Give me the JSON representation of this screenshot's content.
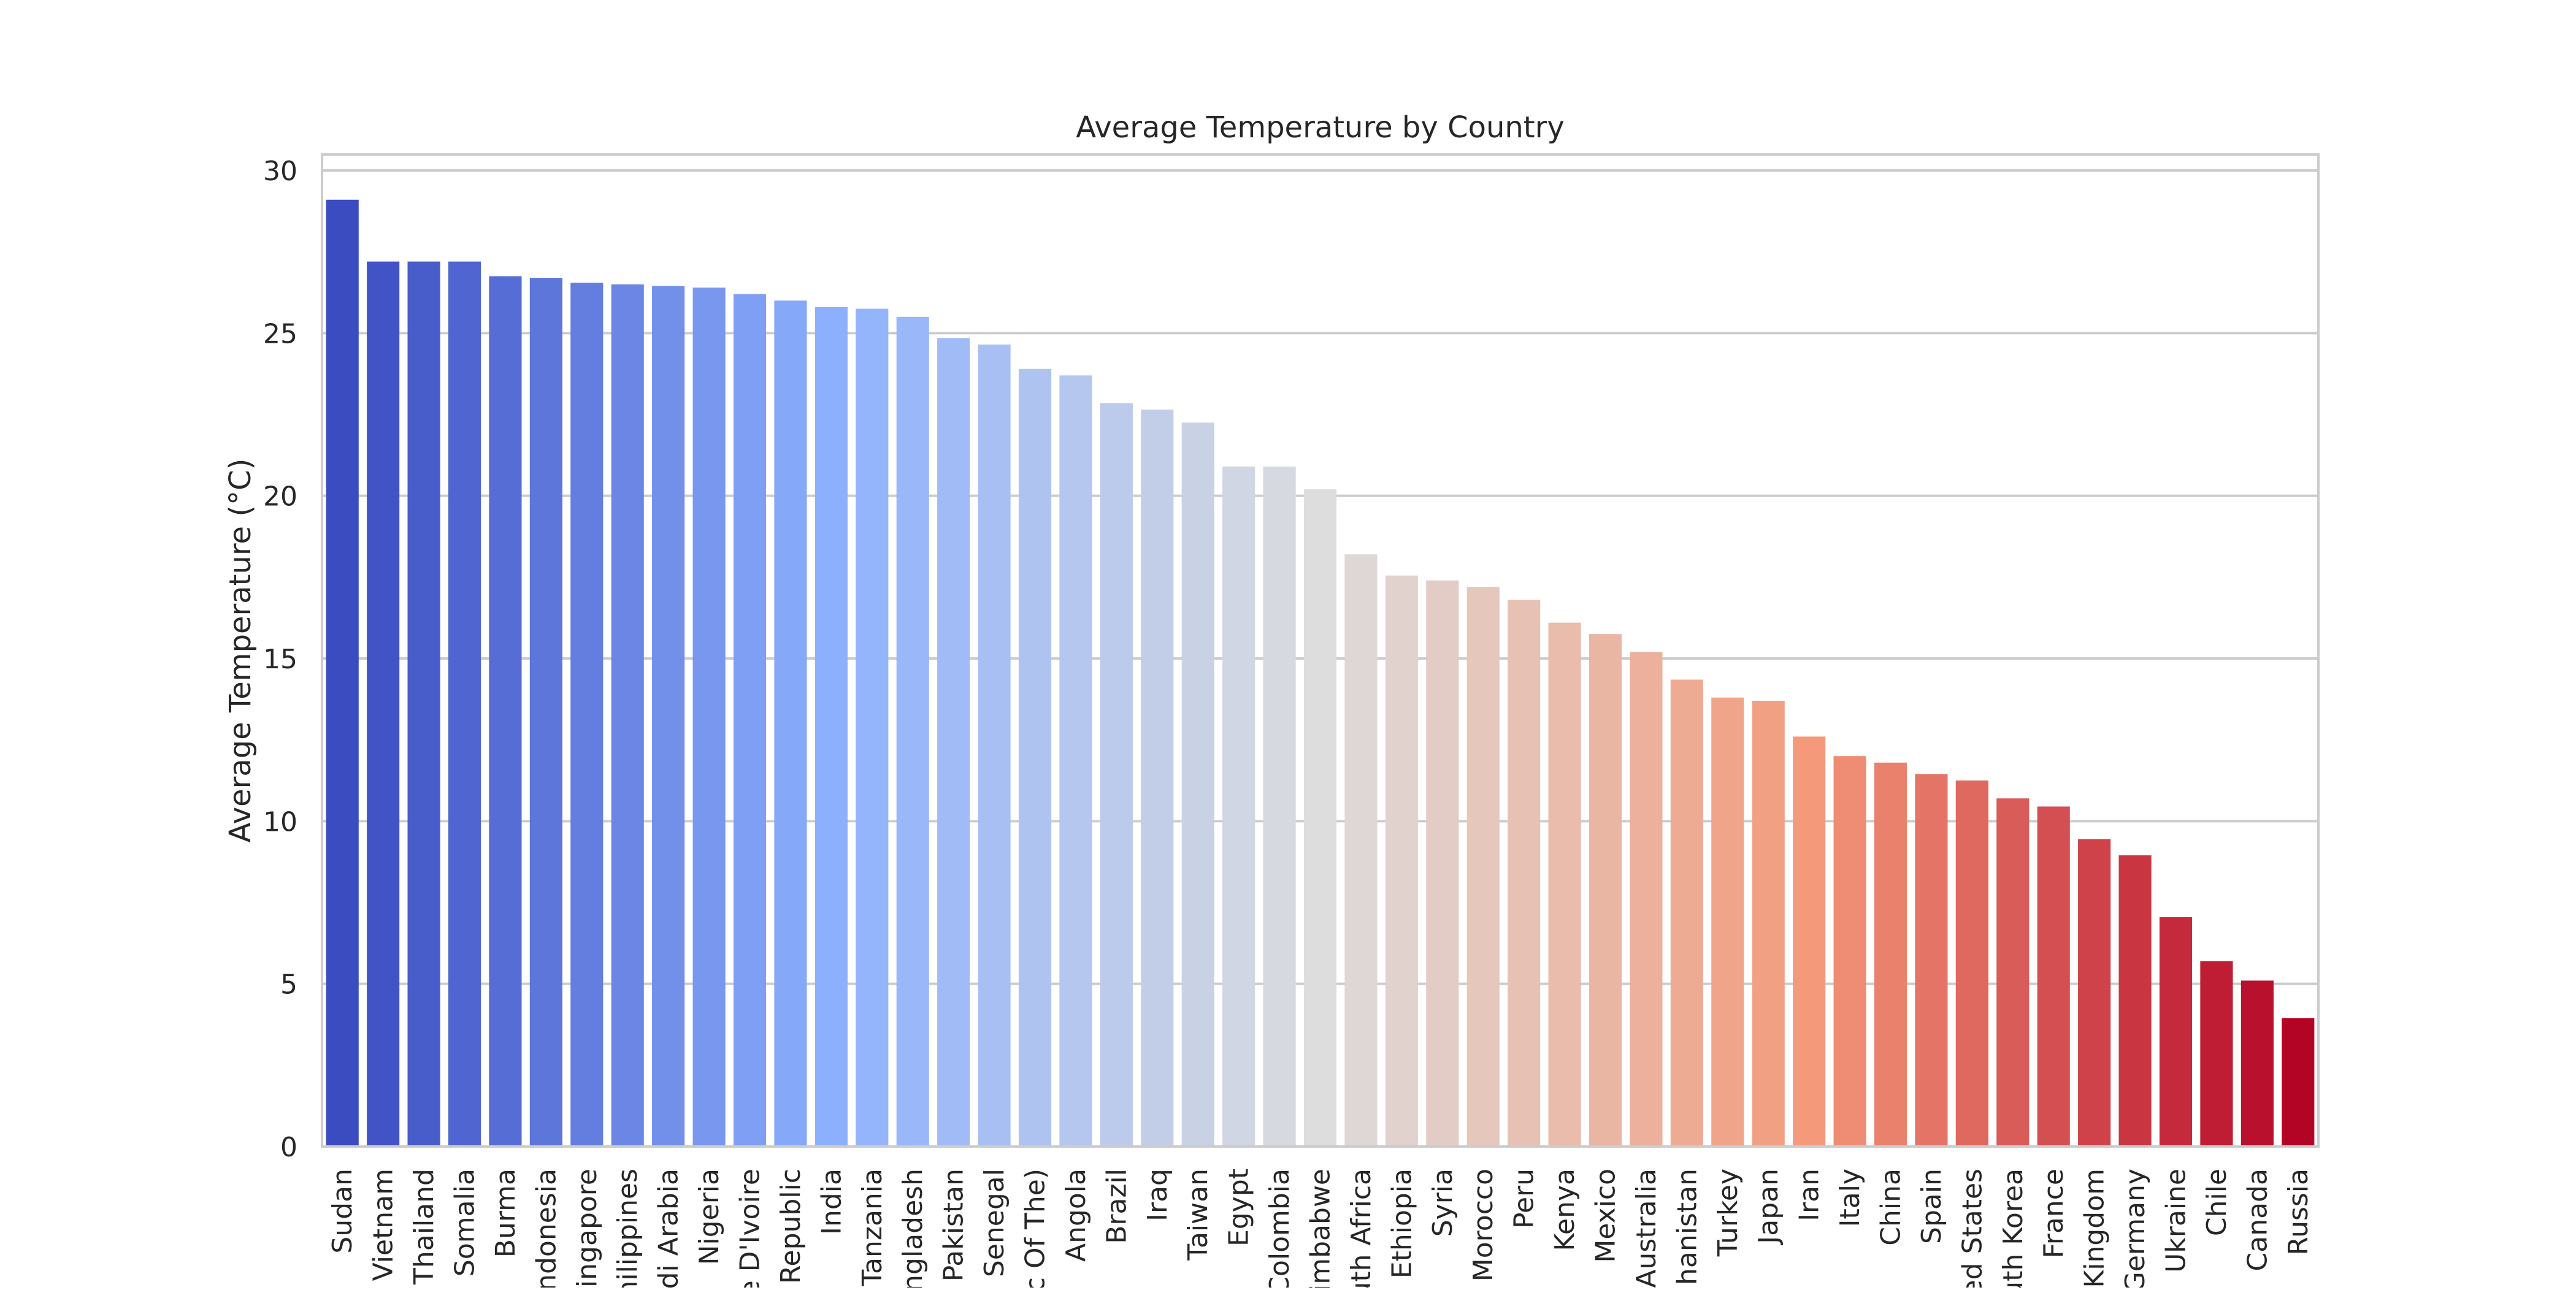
{
  "chart_data": {
    "type": "bar",
    "title": "Average Temperature by Country",
    "xlabel": "",
    "ylabel": "Average Temperature (°C)",
    "ylim": [
      0,
      30
    ],
    "yticks": [
      0,
      5,
      10,
      15,
      20,
      25,
      30
    ],
    "grid": "horizontal",
    "palette": "coolwarm",
    "categories": [
      "Sudan",
      "Vietnam",
      "Thailand",
      "Somalia",
      "Burma",
      "Indonesia",
      "Singapore",
      "Philippines",
      "Saudi Arabia",
      "Nigeria",
      "Cote D'Ivoire",
      "Central African Republic",
      "India",
      "Tanzania",
      "Bangladesh",
      "Pakistan",
      "Senegal",
      "Congo (Democratic Republic Of The)",
      "Angola",
      "Brazil",
      "Iraq",
      "Taiwan",
      "Egypt",
      "Colombia",
      "Zimbabwe",
      "South Africa",
      "Ethiopia",
      "Syria",
      "Morocco",
      "Peru",
      "Kenya",
      "Mexico",
      "Australia",
      "Afghanistan",
      "Turkey",
      "Japan",
      "Iran",
      "Italy",
      "China",
      "Spain",
      "United States",
      "South Korea",
      "France",
      "United Kingdom",
      "Germany",
      "Ukraine",
      "Chile",
      "Canada",
      "Russia"
    ],
    "tick_labels": [
      "Sudan",
      "Vietnam",
      "Thailand",
      "Somalia",
      "Burma",
      "ndonesia",
      "Singapore",
      "hilippines",
      "di Arabia",
      "Nigeria",
      "e D'Ivoire",
      "Republic",
      "India",
      "Tanzania",
      "ngladesh",
      "Pakistan",
      "Senegal",
      "c Of The)",
      "Angola",
      "Brazil",
      "Iraq",
      "Taiwan",
      "Egypt",
      "Colombia",
      "imbabwe",
      "uth Africa",
      "Ethiopia",
      "Syria",
      "Morocco",
      "Peru",
      "Kenya",
      "Mexico",
      "Australia",
      "ghanistan",
      "Turkey",
      "Japan",
      "Iran",
      "Italy",
      "China",
      "Spain",
      "ed States",
      "uth Korea",
      "France",
      "Kingdom",
      "Germany",
      "Ukraine",
      "Chile",
      "Canada",
      "Russia"
    ],
    "values": [
      29.1,
      27.2,
      27.2,
      27.2,
      26.75,
      26.7,
      26.55,
      26.5,
      26.45,
      26.4,
      26.2,
      26.0,
      25.8,
      25.75,
      25.5,
      24.85,
      24.65,
      23.9,
      23.7,
      22.85,
      22.65,
      22.25,
      20.9,
      20.9,
      20.2,
      18.2,
      17.55,
      17.4,
      17.2,
      16.8,
      16.1,
      15.75,
      15.2,
      14.35,
      13.8,
      13.7,
      12.6,
      12.0,
      11.8,
      11.45,
      11.25,
      10.7,
      10.45,
      9.45,
      8.95,
      7.05,
      5.7,
      5.1,
      3.95
    ]
  }
}
